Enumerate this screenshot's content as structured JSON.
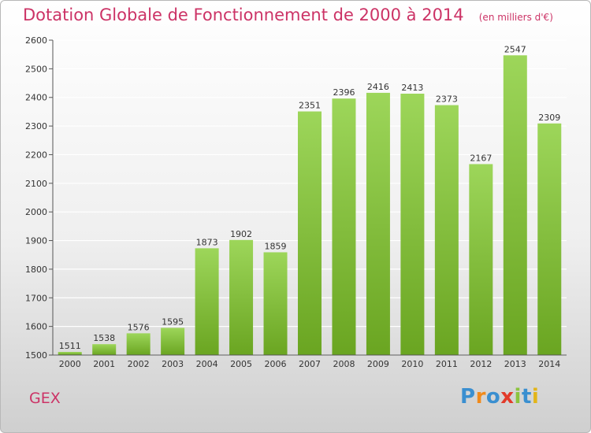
{
  "title": "Dotation Globale de Fonctionnement de 2000 à 2014",
  "subtitle": "(en milliers d'€)",
  "commune": "GEX",
  "logo": {
    "letters": [
      "P",
      "r",
      "o",
      "x",
      "i",
      "t",
      "i"
    ],
    "colors": [
      "#3a8fd0",
      "#f08a1c",
      "#3a8fd0",
      "#e23b2a",
      "#8cc43e",
      "#3a8fd0",
      "#e2b51a"
    ]
  },
  "colors": {
    "accent": "#cc3366",
    "bar_light": "#9dd65a",
    "bar_dark": "#6aa521",
    "grid": "#ffffff"
  },
  "chart_data": {
    "type": "bar",
    "categories": [
      "2000",
      "2001",
      "2002",
      "2003",
      "2004",
      "2005",
      "2006",
      "2007",
      "2008",
      "2009",
      "2010",
      "2011",
      "2012",
      "2013",
      "2014"
    ],
    "values": [
      1511,
      1538,
      1576,
      1595,
      1873,
      1902,
      1859,
      2351,
      2396,
      2416,
      2413,
      2373,
      2167,
      2547,
      2309
    ],
    "yticks": [
      1500,
      1600,
      1700,
      1800,
      1900,
      2000,
      2100,
      2200,
      2300,
      2400,
      2500,
      2600
    ],
    "ylim": [
      1500,
      2600
    ],
    "grid": true,
    "xlabel": "",
    "ylabel": ""
  }
}
